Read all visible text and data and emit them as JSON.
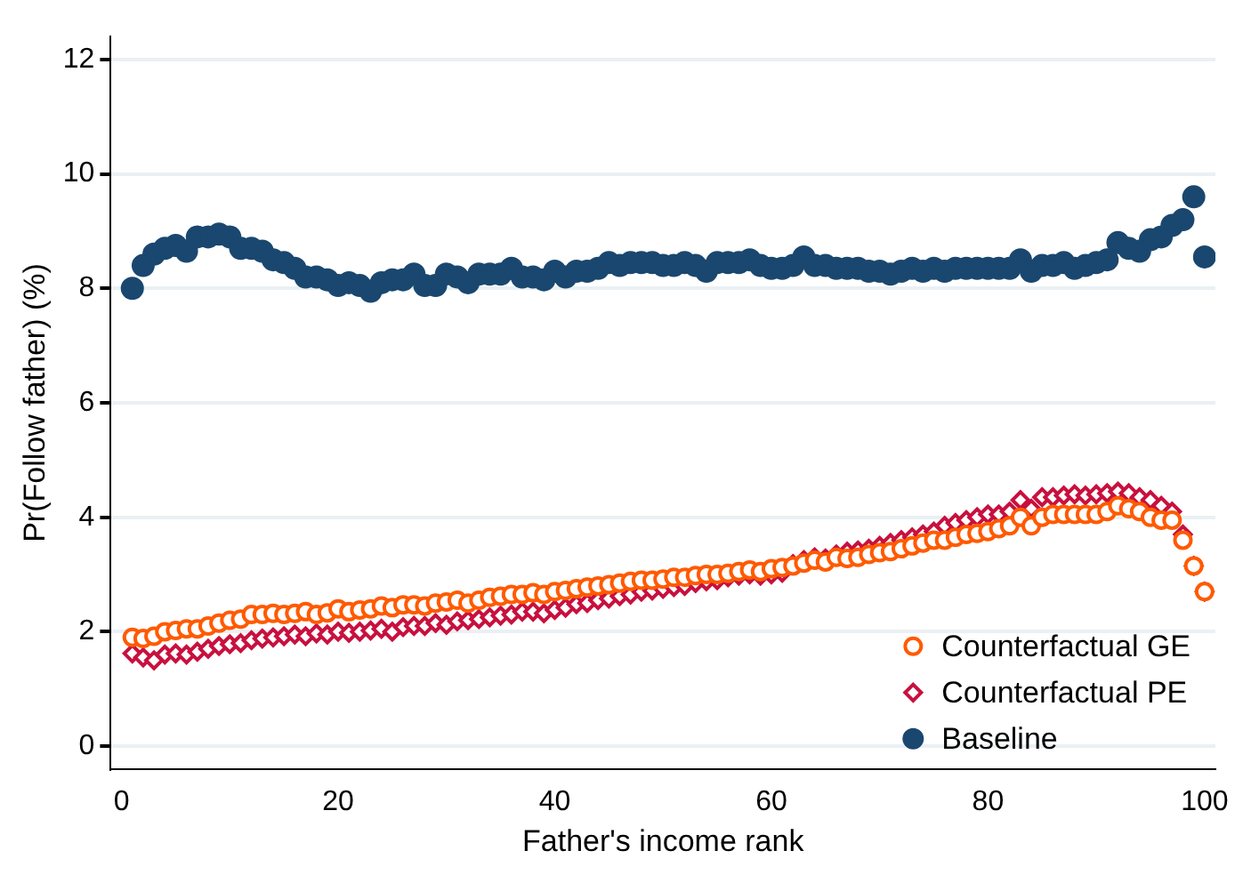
{
  "chart_data": {
    "type": "scatter",
    "xlabel": "Father's income rank",
    "ylabel": "Pr(Follow father) (%)",
    "xlim": [
      -1,
      101
    ],
    "xticks": [
      0,
      20,
      40,
      60,
      80,
      100
    ],
    "ylim": [
      -0.4,
      12.4
    ],
    "yticks": [
      0,
      2,
      4,
      6,
      8,
      10,
      12
    ],
    "grid": "y",
    "legend": "bottom right",
    "x": [
      1,
      2,
      3,
      4,
      5,
      6,
      7,
      8,
      9,
      10,
      11,
      12,
      13,
      14,
      15,
      16,
      17,
      18,
      19,
      20,
      21,
      22,
      23,
      24,
      25,
      26,
      27,
      28,
      29,
      30,
      31,
      32,
      33,
      34,
      35,
      36,
      37,
      38,
      39,
      40,
      41,
      42,
      43,
      44,
      45,
      46,
      47,
      48,
      49,
      50,
      51,
      52,
      53,
      54,
      55,
      56,
      57,
      58,
      59,
      60,
      61,
      62,
      63,
      64,
      65,
      66,
      67,
      68,
      69,
      70,
      71,
      72,
      73,
      74,
      75,
      76,
      77,
      78,
      79,
      80,
      81,
      82,
      83,
      84,
      85,
      86,
      87,
      88,
      89,
      90,
      91,
      92,
      93,
      94,
      95,
      96,
      97,
      98,
      99,
      100
    ],
    "series": [
      {
        "name": "Counterfactual GE",
        "color": "#ff5a00",
        "marker": "circle",
        "values": [
          1.9,
          1.88,
          1.92,
          2.0,
          2.02,
          2.05,
          2.05,
          2.1,
          2.15,
          2.2,
          2.22,
          2.3,
          2.3,
          2.32,
          2.3,
          2.32,
          2.35,
          2.3,
          2.33,
          2.4,
          2.35,
          2.38,
          2.4,
          2.45,
          2.42,
          2.47,
          2.47,
          2.45,
          2.5,
          2.52,
          2.55,
          2.5,
          2.55,
          2.6,
          2.62,
          2.65,
          2.65,
          2.68,
          2.65,
          2.7,
          2.72,
          2.75,
          2.78,
          2.8,
          2.82,
          2.85,
          2.88,
          2.9,
          2.9,
          2.92,
          2.95,
          2.95,
          2.98,
          3.0,
          3.0,
          3.02,
          3.05,
          3.08,
          3.05,
          3.1,
          3.12,
          3.15,
          3.2,
          3.25,
          3.22,
          3.3,
          3.28,
          3.3,
          3.35,
          3.38,
          3.4,
          3.45,
          3.5,
          3.55,
          3.6,
          3.6,
          3.65,
          3.7,
          3.72,
          3.75,
          3.8,
          3.85,
          4.0,
          3.85,
          4.0,
          4.05,
          4.05,
          4.05,
          4.05,
          4.05,
          4.1,
          4.2,
          4.15,
          4.1,
          4.0,
          3.95,
          3.95,
          3.6,
          3.15,
          2.7
        ]
      },
      {
        "name": "Counterfactual PE",
        "color": "#c8103e",
        "marker": "diamond",
        "values": [
          1.62,
          1.55,
          1.5,
          1.6,
          1.62,
          1.6,
          1.65,
          1.7,
          1.75,
          1.78,
          1.8,
          1.85,
          1.88,
          1.9,
          1.92,
          1.95,
          1.92,
          1.97,
          1.95,
          2.0,
          1.98,
          2.0,
          2.02,
          2.05,
          2.0,
          2.08,
          2.1,
          2.1,
          2.15,
          2.12,
          2.18,
          2.2,
          2.22,
          2.25,
          2.28,
          2.3,
          2.35,
          2.35,
          2.32,
          2.38,
          2.42,
          2.48,
          2.5,
          2.55,
          2.58,
          2.62,
          2.65,
          2.7,
          2.72,
          2.75,
          2.78,
          2.8,
          2.85,
          2.88,
          2.9,
          2.95,
          2.98,
          3.0,
          2.98,
          3.0,
          3.03,
          3.18,
          3.25,
          3.3,
          3.28,
          3.35,
          3.4,
          3.42,
          3.45,
          3.5,
          3.55,
          3.6,
          3.65,
          3.7,
          3.75,
          3.85,
          3.9,
          3.95,
          4.0,
          4.05,
          4.05,
          4.1,
          4.3,
          4.15,
          4.35,
          4.35,
          4.38,
          4.4,
          4.38,
          4.4,
          4.42,
          4.45,
          4.42,
          4.35,
          4.3,
          4.2,
          4.1,
          3.7,
          3.15,
          2.7
        ]
      },
      {
        "name": "Baseline",
        "color": "#1a476f",
        "marker": "circle",
        "values": [
          8.0,
          8.4,
          8.6,
          8.7,
          8.75,
          8.65,
          8.9,
          8.9,
          8.95,
          8.9,
          8.7,
          8.7,
          8.65,
          8.5,
          8.45,
          8.35,
          8.2,
          8.2,
          8.15,
          8.05,
          8.1,
          8.05,
          7.95,
          8.1,
          8.15,
          8.15,
          8.25,
          8.05,
          8.05,
          8.25,
          8.2,
          8.1,
          8.25,
          8.25,
          8.25,
          8.35,
          8.2,
          8.2,
          8.15,
          8.3,
          8.2,
          8.3,
          8.3,
          8.35,
          8.45,
          8.4,
          8.45,
          8.45,
          8.45,
          8.4,
          8.4,
          8.45,
          8.4,
          8.3,
          8.45,
          8.45,
          8.45,
          8.5,
          8.4,
          8.35,
          8.35,
          8.4,
          8.55,
          8.4,
          8.4,
          8.35,
          8.35,
          8.35,
          8.3,
          8.3,
          8.25,
          8.3,
          8.35,
          8.3,
          8.35,
          8.3,
          8.35,
          8.35,
          8.35,
          8.35,
          8.35,
          8.35,
          8.5,
          8.3,
          8.4,
          8.4,
          8.45,
          8.35,
          8.4,
          8.45,
          8.5,
          8.8,
          8.7,
          8.65,
          8.85,
          8.9,
          9.1,
          9.2,
          9.6,
          8.55
        ]
      }
    ]
  }
}
